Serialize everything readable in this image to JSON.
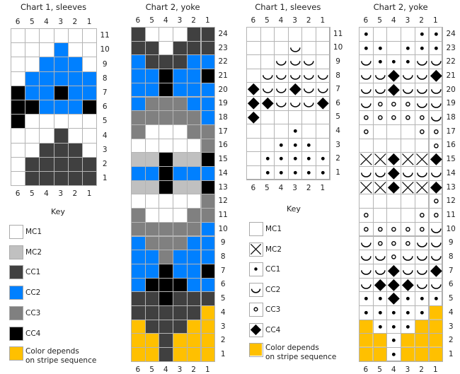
{
  "colors": {
    "W": "#ffffff",
    "L": "#c0c0c0",
    "D": "#404040",
    "B": "#0080ff",
    "G": "#808080",
    "K": "#000000",
    "Y": "#ffc000"
  },
  "symbols": {
    "W": "blank",
    "L": "x-cross",
    "D": "dot",
    "B": "arc",
    "G": "open-circle",
    "K": "diamond",
    "Y": "yellow-fill"
  },
  "column_numbers": [
    "6",
    "5",
    "4",
    "3",
    "2",
    "1"
  ],
  "chart1": {
    "title": "Chart 1, sleeves",
    "row_numbers": [
      "11",
      "10",
      "9",
      "8",
      "7",
      "6",
      "5",
      "4",
      "3",
      "2",
      "1"
    ],
    "rows": [
      "WWWWWW",
      "WWWBWW",
      "WWBBBW",
      "WBBBBB",
      "KBBKBB",
      "KKBBBK",
      "KWWWWW",
      "WWWDWW",
      "WWDDDW",
      "WDDDDD",
      "WDDDDD"
    ]
  },
  "chart2": {
    "title": "Chart 2, yoke",
    "row_numbers": [
      "24",
      "23",
      "22",
      "21",
      "20",
      "19",
      "18",
      "17",
      "16",
      "15",
      "14",
      "13",
      "12",
      "11",
      "10",
      "9",
      "8",
      "7",
      "6",
      "5",
      "4",
      "3",
      "2",
      "1"
    ],
    "rows": [
      "DWWWDD",
      "DDWDDD",
      "BDDDBB",
      "BBKBBK",
      "BBKBBB",
      "BGGGBB",
      "GGGGGB",
      "GWWWGG",
      "WWWWWG",
      "LLKLLK",
      "BBKBBB",
      "LLKLLK",
      "WWWWWG",
      "GWWWGG",
      "GGGGGB",
      "BGGGBB",
      "BBGBBB",
      "BBKBBK",
      "BKKKBB",
      "DDKDDD",
      "DDDDDY",
      "YDDDYY",
      "YYDYYY",
      "YYDYYY"
    ]
  },
  "key": {
    "title": "Key",
    "items": [
      {
        "code": "W",
        "label": "MC1"
      },
      {
        "code": "L",
        "label": "MC2"
      },
      {
        "code": "D",
        "label": "CC1"
      },
      {
        "code": "B",
        "label": "CC2"
      },
      {
        "code": "G",
        "label": "CC3"
      },
      {
        "code": "K",
        "label": "CC4"
      },
      {
        "code": "Y",
        "label": "Color depends\non stripe sequence"
      }
    ]
  }
}
